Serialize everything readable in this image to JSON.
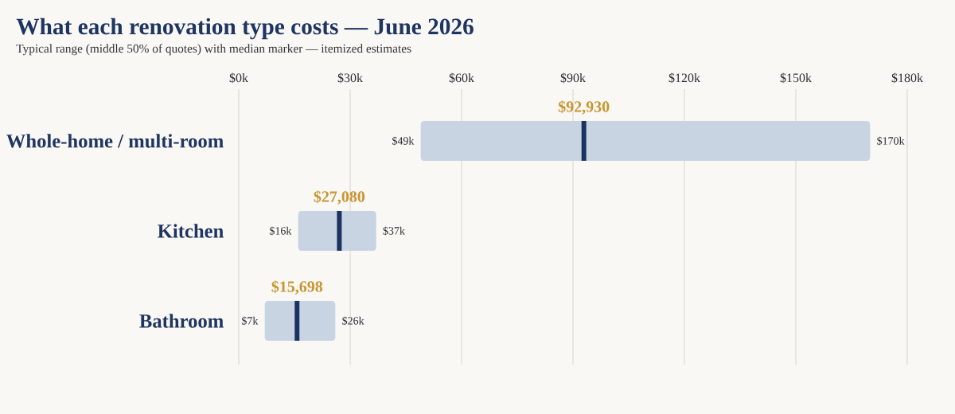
{
  "chart_data": {
    "type": "box",
    "orientation": "horizontal",
    "title": "What each renovation type costs — June 2026",
    "subtitle": "Typical range (middle 50% of quotes) with median marker — itemized estimates",
    "categories": [
      "Whole-home / multi-room",
      "Kitchen",
      "Bathroom"
    ],
    "color": "#c9d4e3",
    "boxes": [
      {
        "low": 49000,
        "q1": 49000,
        "median": 92930,
        "q3": 170000,
        "high": 170000
      },
      {
        "low": 16000,
        "q1": 16000,
        "median": 27080,
        "q3": 37000,
        "high": 37000
      },
      {
        "low": 7000,
        "q1": 7000,
        "median": 15698,
        "q3": 26000,
        "high": 26000
      }
    ],
    "xlim": [
      0,
      180000
    ],
    "xticks": [
      {
        "value": 0,
        "label": "$0k"
      },
      {
        "value": 30000,
        "label": "$30k"
      },
      {
        "value": 60000,
        "label": "$60k"
      },
      {
        "value": 90000,
        "label": "$90k"
      },
      {
        "value": 120000,
        "label": "$120k"
      },
      {
        "value": 150000,
        "label": "$150k"
      },
      {
        "value": 180000,
        "label": "$180k"
      }
    ],
    "grid": "x",
    "annotations": [
      {
        "text": "$92,930",
        "x": 92930,
        "y": "Whole-home / multi-room"
      },
      {
        "text": "$27,080",
        "x": 27080,
        "y": "Kitchen"
      },
      {
        "text": "$15,698",
        "x": 15698,
        "y": "Bathroom"
      },
      {
        "text": "$49k",
        "x": 49000,
        "y": "Whole-home / multi-room"
      },
      {
        "text": "$170k",
        "x": 170000,
        "y": "Whole-home / multi-room"
      },
      {
        "text": "$16k",
        "x": 16000,
        "y": "Kitchen"
      },
      {
        "text": "$37k",
        "x": 37000,
        "y": "Kitchen"
      },
      {
        "text": "$7k",
        "x": 7000,
        "y": "Bathroom"
      },
      {
        "text": "$26k",
        "x": 26000,
        "y": "Bathroom"
      }
    ]
  }
}
